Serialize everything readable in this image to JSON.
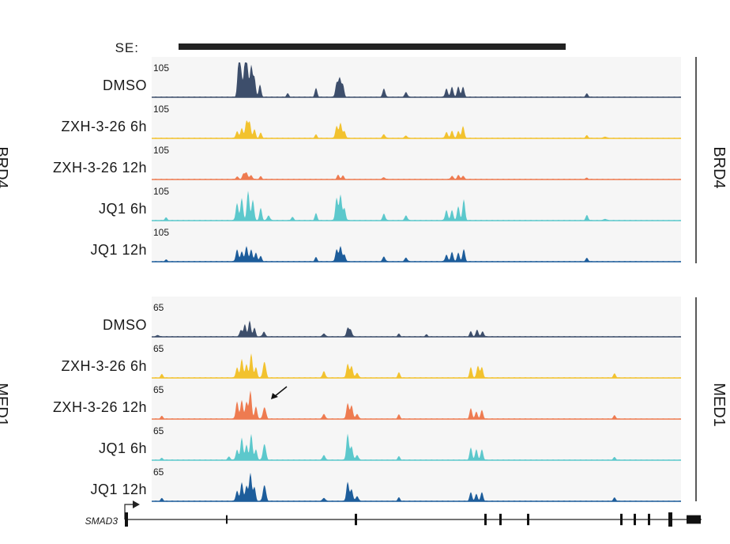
{
  "se": {
    "label": "SE:"
  },
  "groups": [
    {
      "id": "brd4",
      "side_label": "BRD4",
      "left_label": "BRD4",
      "scale": "105",
      "tracks": [
        {
          "label": "DMSO",
          "color": "#3d4e6b",
          "peaks": [
            [
              302,
              0.95
            ],
            [
              305,
              0.7
            ],
            [
              310,
              0.95
            ],
            [
              313,
              0.8
            ],
            [
              318,
              0.9
            ],
            [
              322,
              0.55
            ],
            [
              329,
              0.35
            ],
            [
              364,
              0.1
            ],
            [
              400,
              0.25
            ],
            [
              426,
              0.4
            ],
            [
              430,
              0.55
            ],
            [
              434,
              0.35
            ],
            [
              486,
              0.25
            ],
            [
              514,
              0.15
            ],
            [
              565,
              0.25
            ],
            [
              572,
              0.3
            ],
            [
              580,
              0.3
            ],
            [
              586,
              0.3
            ],
            [
              743,
              0.1
            ]
          ]
        },
        {
          "label": "ZXH-3-26 6h",
          "color": "#f2c22e",
          "peaks": [
            [
              300,
              0.2
            ],
            [
              306,
              0.3
            ],
            [
              312,
              0.5
            ],
            [
              316,
              0.45
            ],
            [
              322,
              0.25
            ],
            [
              330,
              0.15
            ],
            [
              400,
              0.1
            ],
            [
              426,
              0.35
            ],
            [
              431,
              0.45
            ],
            [
              436,
              0.2
            ],
            [
              486,
              0.12
            ],
            [
              514,
              0.08
            ],
            [
              565,
              0.18
            ],
            [
              572,
              0.22
            ],
            [
              580,
              0.2
            ],
            [
              586,
              0.35
            ],
            [
              743,
              0.08
            ],
            [
              766,
              0.05
            ]
          ]
        },
        {
          "label": "ZXH-3-26 12h",
          "color": "#ee7b50",
          "peaks": [
            [
              300,
              0.08
            ],
            [
              308,
              0.15
            ],
            [
              312,
              0.2
            ],
            [
              318,
              0.12
            ],
            [
              330,
              0.08
            ],
            [
              428,
              0.12
            ],
            [
              434,
              0.1
            ],
            [
              486,
              0.06
            ],
            [
              572,
              0.1
            ],
            [
              580,
              0.12
            ],
            [
              586,
              0.1
            ],
            [
              743,
              0.04
            ]
          ]
        },
        {
          "label": "JQ1 6h",
          "color": "#5cc8cc",
          "peaks": [
            [
              210,
              0.08
            ],
            [
              300,
              0.5
            ],
            [
              306,
              0.65
            ],
            [
              314,
              0.85
            ],
            [
              320,
              0.6
            ],
            [
              330,
              0.35
            ],
            [
              340,
              0.15
            ],
            [
              370,
              0.1
            ],
            [
              400,
              0.2
            ],
            [
              426,
              0.65
            ],
            [
              431,
              0.75
            ],
            [
              436,
              0.35
            ],
            [
              486,
              0.2
            ],
            [
              514,
              0.15
            ],
            [
              565,
              0.3
            ],
            [
              572,
              0.3
            ],
            [
              580,
              0.4
            ],
            [
              587,
              0.6
            ],
            [
              743,
              0.15
            ],
            [
              766,
              0.05
            ]
          ]
        },
        {
          "label": "JQ1 12h",
          "color": "#1d5d9b",
          "peaks": [
            [
              210,
              0.05
            ],
            [
              300,
              0.35
            ],
            [
              306,
              0.3
            ],
            [
              312,
              0.45
            ],
            [
              318,
              0.35
            ],
            [
              324,
              0.25
            ],
            [
              330,
              0.15
            ],
            [
              400,
              0.12
            ],
            [
              426,
              0.35
            ],
            [
              431,
              0.45
            ],
            [
              436,
              0.2
            ],
            [
              486,
              0.15
            ],
            [
              514,
              0.12
            ],
            [
              565,
              0.2
            ],
            [
              572,
              0.28
            ],
            [
              580,
              0.25
            ],
            [
              587,
              0.35
            ],
            [
              743,
              0.1
            ]
          ]
        }
      ]
    },
    {
      "id": "med1",
      "side_label": "MED1",
      "left_label": "MED1",
      "scale": "65",
      "tracks": [
        {
          "label": "DMSO",
          "color": "#3d4e6b",
          "peaks": [
            [
              200,
              0.05
            ],
            [
              305,
              0.2
            ],
            [
              310,
              0.35
            ],
            [
              316,
              0.45
            ],
            [
              322,
              0.25
            ],
            [
              334,
              0.15
            ],
            [
              410,
              0.1
            ],
            [
              440,
              0.25
            ],
            [
              444,
              0.2
            ],
            [
              505,
              0.08
            ],
            [
              540,
              0.06
            ],
            [
              596,
              0.15
            ],
            [
              604,
              0.2
            ],
            [
              611,
              0.15
            ]
          ]
        },
        {
          "label": "ZXH-3-26 6h",
          "color": "#f2c22e",
          "peaks": [
            [
              205,
              0.1
            ],
            [
              300,
              0.3
            ],
            [
              306,
              0.55
            ],
            [
              312,
              0.4
            ],
            [
              318,
              0.7
            ],
            [
              324,
              0.3
            ],
            [
              334,
              0.35
            ],
            [
              336,
              0.2
            ],
            [
              410,
              0.2
            ],
            [
              440,
              0.4
            ],
            [
              445,
              0.35
            ],
            [
              452,
              0.15
            ],
            [
              505,
              0.15
            ],
            [
              596,
              0.3
            ],
            [
              605,
              0.35
            ],
            [
              610,
              0.3
            ],
            [
              778,
              0.12
            ]
          ]
        },
        {
          "label": "ZXH-3-26 12h",
          "color": "#ee7b50",
          "peaks": [
            [
              205,
              0.08
            ],
            [
              300,
              0.5
            ],
            [
              306,
              0.55
            ],
            [
              312,
              0.5
            ],
            [
              317,
              0.8
            ],
            [
              324,
              0.35
            ],
            [
              334,
              0.25
            ],
            [
              336,
              0.15
            ],
            [
              410,
              0.15
            ],
            [
              440,
              0.45
            ],
            [
              445,
              0.4
            ],
            [
              452,
              0.15
            ],
            [
              505,
              0.12
            ],
            [
              596,
              0.3
            ],
            [
              603,
              0.2
            ],
            [
              610,
              0.25
            ],
            [
              778,
              0.1
            ]
          ]
        },
        {
          "label": "JQ1 6h",
          "color": "#5cc8cc",
          "peaks": [
            [
              205,
              0.05
            ],
            [
              290,
              0.1
            ],
            [
              300,
              0.3
            ],
            [
              306,
              0.65
            ],
            [
              312,
              0.45
            ],
            [
              318,
              0.75
            ],
            [
              324,
              0.3
            ],
            [
              334,
              0.35
            ],
            [
              336,
              0.2
            ],
            [
              410,
              0.15
            ],
            [
              440,
              0.75
            ],
            [
              445,
              0.4
            ],
            [
              452,
              0.15
            ],
            [
              505,
              0.1
            ],
            [
              596,
              0.35
            ],
            [
              603,
              0.3
            ],
            [
              610,
              0.3
            ],
            [
              778,
              0.08
            ]
          ]
        },
        {
          "label": "JQ1 12h",
          "color": "#1d5d9b",
          "peaks": [
            [
              205,
              0.08
            ],
            [
              300,
              0.3
            ],
            [
              306,
              0.55
            ],
            [
              312,
              0.45
            ],
            [
              317,
              0.8
            ],
            [
              322,
              0.4
            ],
            [
              334,
              0.35
            ],
            [
              336,
              0.2
            ],
            [
              410,
              0.1
            ],
            [
              440,
              0.55
            ],
            [
              445,
              0.35
            ],
            [
              452,
              0.15
            ],
            [
              505,
              0.1
            ],
            [
              596,
              0.25
            ],
            [
              603,
              0.2
            ],
            [
              610,
              0.25
            ],
            [
              778,
              0.1
            ]
          ]
        }
      ]
    }
  ],
  "gene": {
    "name": "SMAD3",
    "exons": [
      [
        158,
        4,
        1.0
      ],
      [
        286,
        2,
        0.6
      ],
      [
        449,
        3,
        0.8
      ],
      [
        613,
        3,
        0.8
      ],
      [
        632,
        3,
        0.8
      ],
      [
        667,
        3,
        0.8
      ],
      [
        785,
        3,
        0.8
      ],
      [
        802,
        3,
        0.8
      ],
      [
        820,
        3,
        0.8
      ],
      [
        846,
        5,
        1.0
      ],
      [
        869,
        18,
        0.6
      ]
    ]
  }
}
